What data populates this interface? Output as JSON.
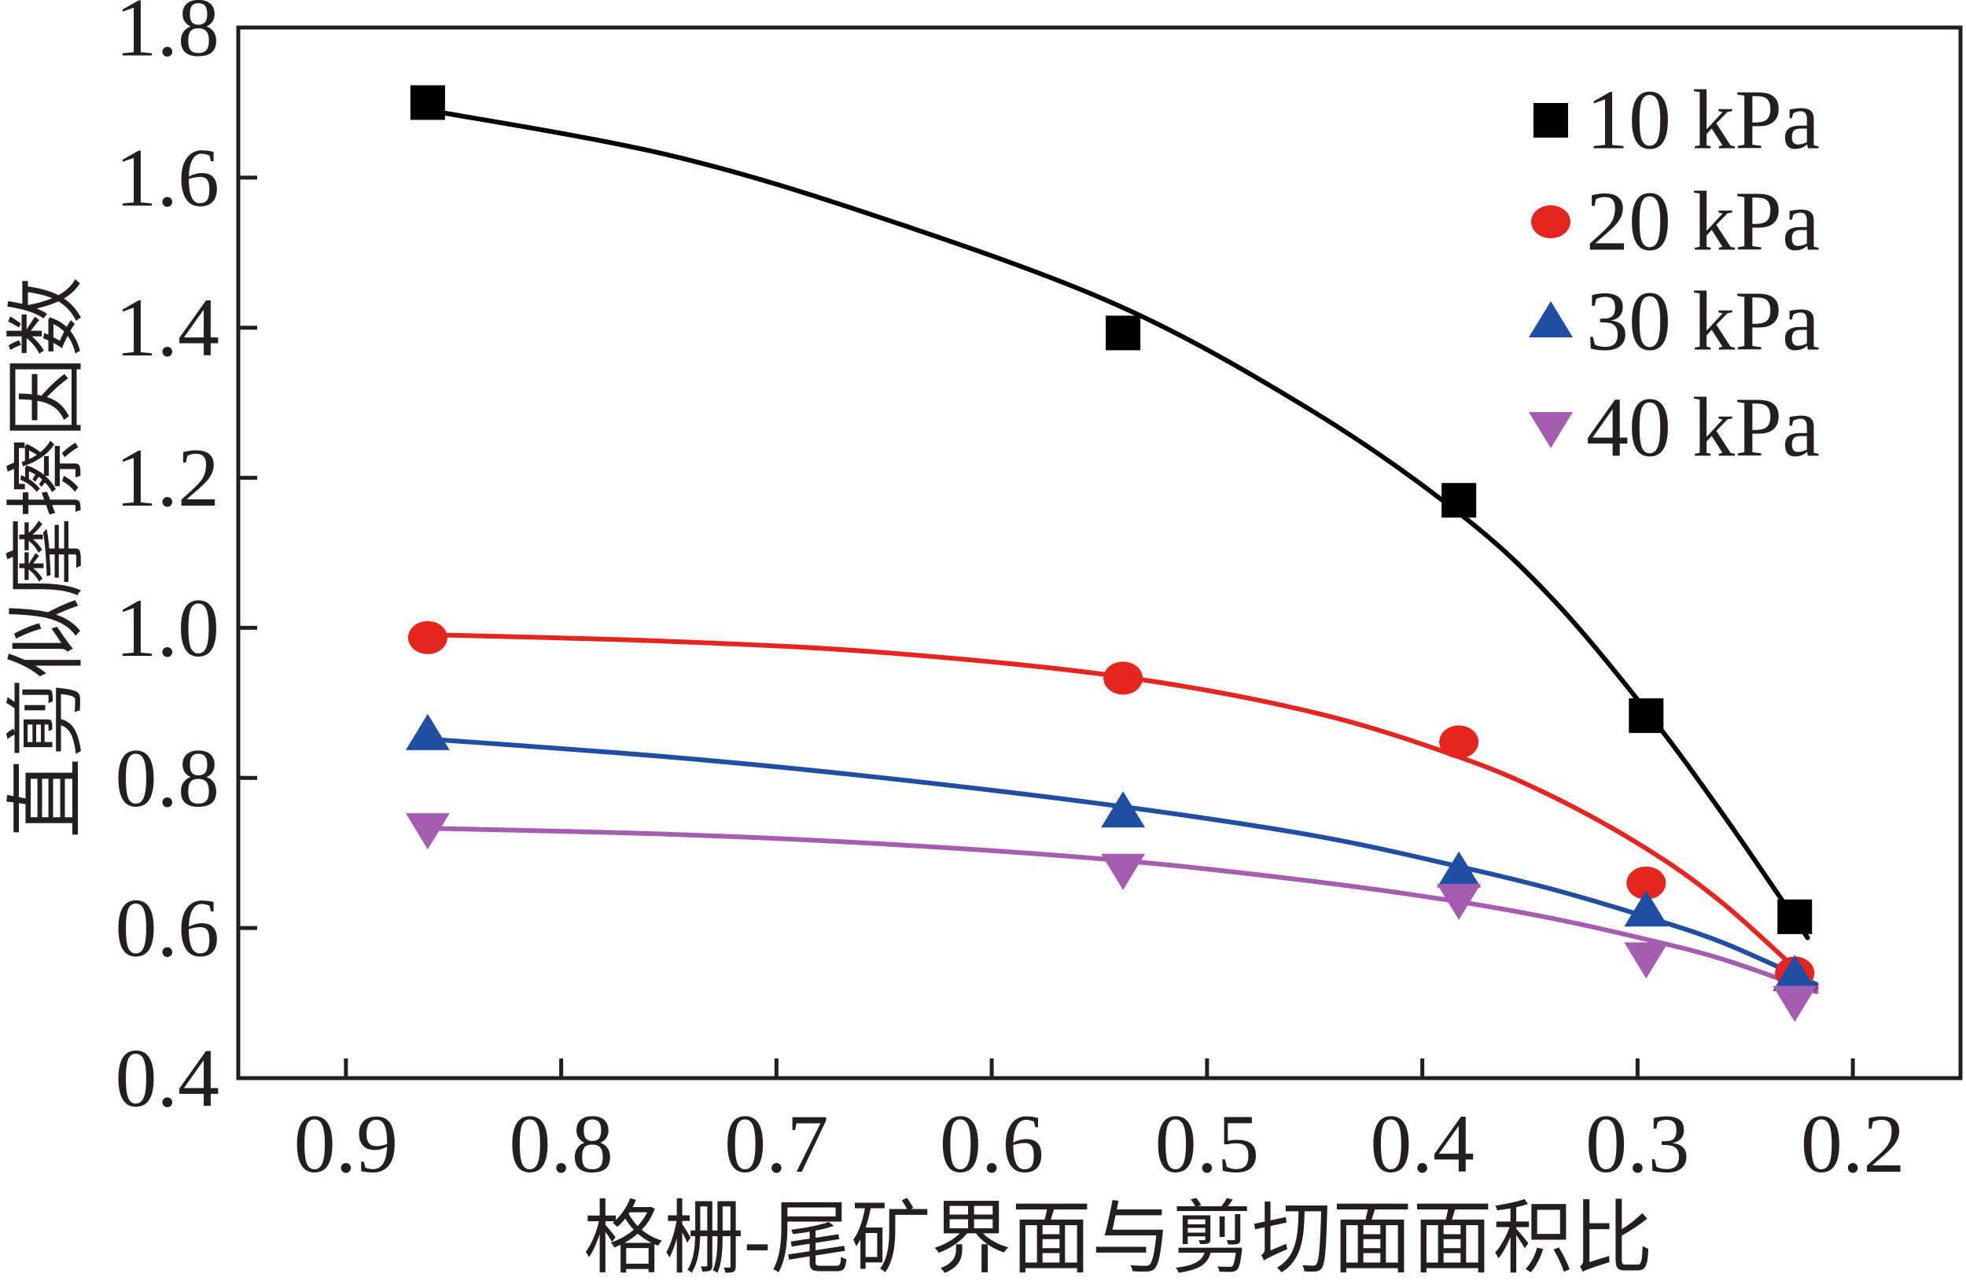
{
  "chart_data": {
    "type": "scatter",
    "xlabel": "格栅-尾矿界面与剪切面面积比",
    "ylabel": "直剪似摩擦因数",
    "xlim": [
      0.95,
      0.15
    ],
    "ylim": [
      0.4,
      1.8
    ],
    "x_axis_reversed": true,
    "grid": false,
    "legend_position": "top-right",
    "x_ticks": [
      0.9,
      0.8,
      0.7,
      0.6,
      0.5,
      0.4,
      0.3,
      0.2
    ],
    "x_tick_labels": [
      "0.9",
      "0.8",
      "0.7",
      "0.6",
      "0.5",
      "0.4",
      "0.3",
      "0.2"
    ],
    "y_ticks": [
      0.4,
      0.6,
      0.8,
      1.0,
      1.2,
      1.4,
      1.6,
      1.8
    ],
    "y_tick_labels": [
      "0.4",
      "0.6",
      "0.8",
      "1.0",
      "1.2",
      "1.4",
      "1.6",
      "1.8"
    ],
    "x": [
      0.862,
      0.539,
      0.383,
      0.296,
      0.227
    ],
    "series": [
      {
        "name": "10 kPa",
        "marker": "square",
        "color": "#000000",
        "values": [
          1.7,
          1.393,
          1.17,
          0.883,
          0.615
        ],
        "fit_curve": {
          "x": [
            0.862,
            0.75,
            0.65,
            0.54,
            0.45,
            0.383,
            0.34,
            0.296,
            0.26,
            0.221
          ],
          "y": [
            1.69,
            1.63,
            1.545,
            1.428,
            1.287,
            1.153,
            1.04,
            0.89,
            0.75,
            0.587
          ]
        }
      },
      {
        "name": "20 kPa",
        "marker": "circle",
        "color": "#e52520",
        "values": [
          0.987,
          0.933,
          0.848,
          0.66,
          0.54
        ],
        "fit_curve": {
          "x": [
            0.862,
            0.75,
            0.65,
            0.54,
            0.45,
            0.383,
            0.34,
            0.296,
            0.26,
            0.217
          ],
          "y": [
            0.991,
            0.982,
            0.967,
            0.935,
            0.887,
            0.828,
            0.776,
            0.706,
            0.632,
            0.52
          ]
        }
      },
      {
        "name": "30 kPa",
        "marker": "triangle-up",
        "color": "#1f4ea3",
        "values": [
          0.858,
          0.755,
          0.675,
          0.623,
          0.537
        ],
        "fit_curve": {
          "x": [
            0.862,
            0.75,
            0.65,
            0.54,
            0.45,
            0.383,
            0.34,
            0.296,
            0.26,
            0.217
          ],
          "y": [
            0.852,
            0.828,
            0.8,
            0.762,
            0.723,
            0.682,
            0.652,
            0.615,
            0.58,
            0.525
          ]
        }
      },
      {
        "name": "40 kPa",
        "marker": "triangle-down",
        "color": "#a55db0",
        "values": [
          0.732,
          0.678,
          0.638,
          0.56,
          0.502
        ],
        "fit_curve": {
          "x": [
            0.862,
            0.75,
            0.65,
            0.54,
            0.45,
            0.383,
            0.34,
            0.296,
            0.26,
            0.217
          ],
          "y": [
            0.733,
            0.725,
            0.712,
            0.69,
            0.662,
            0.635,
            0.613,
            0.585,
            0.558,
            0.515
          ]
        }
      }
    ]
  }
}
